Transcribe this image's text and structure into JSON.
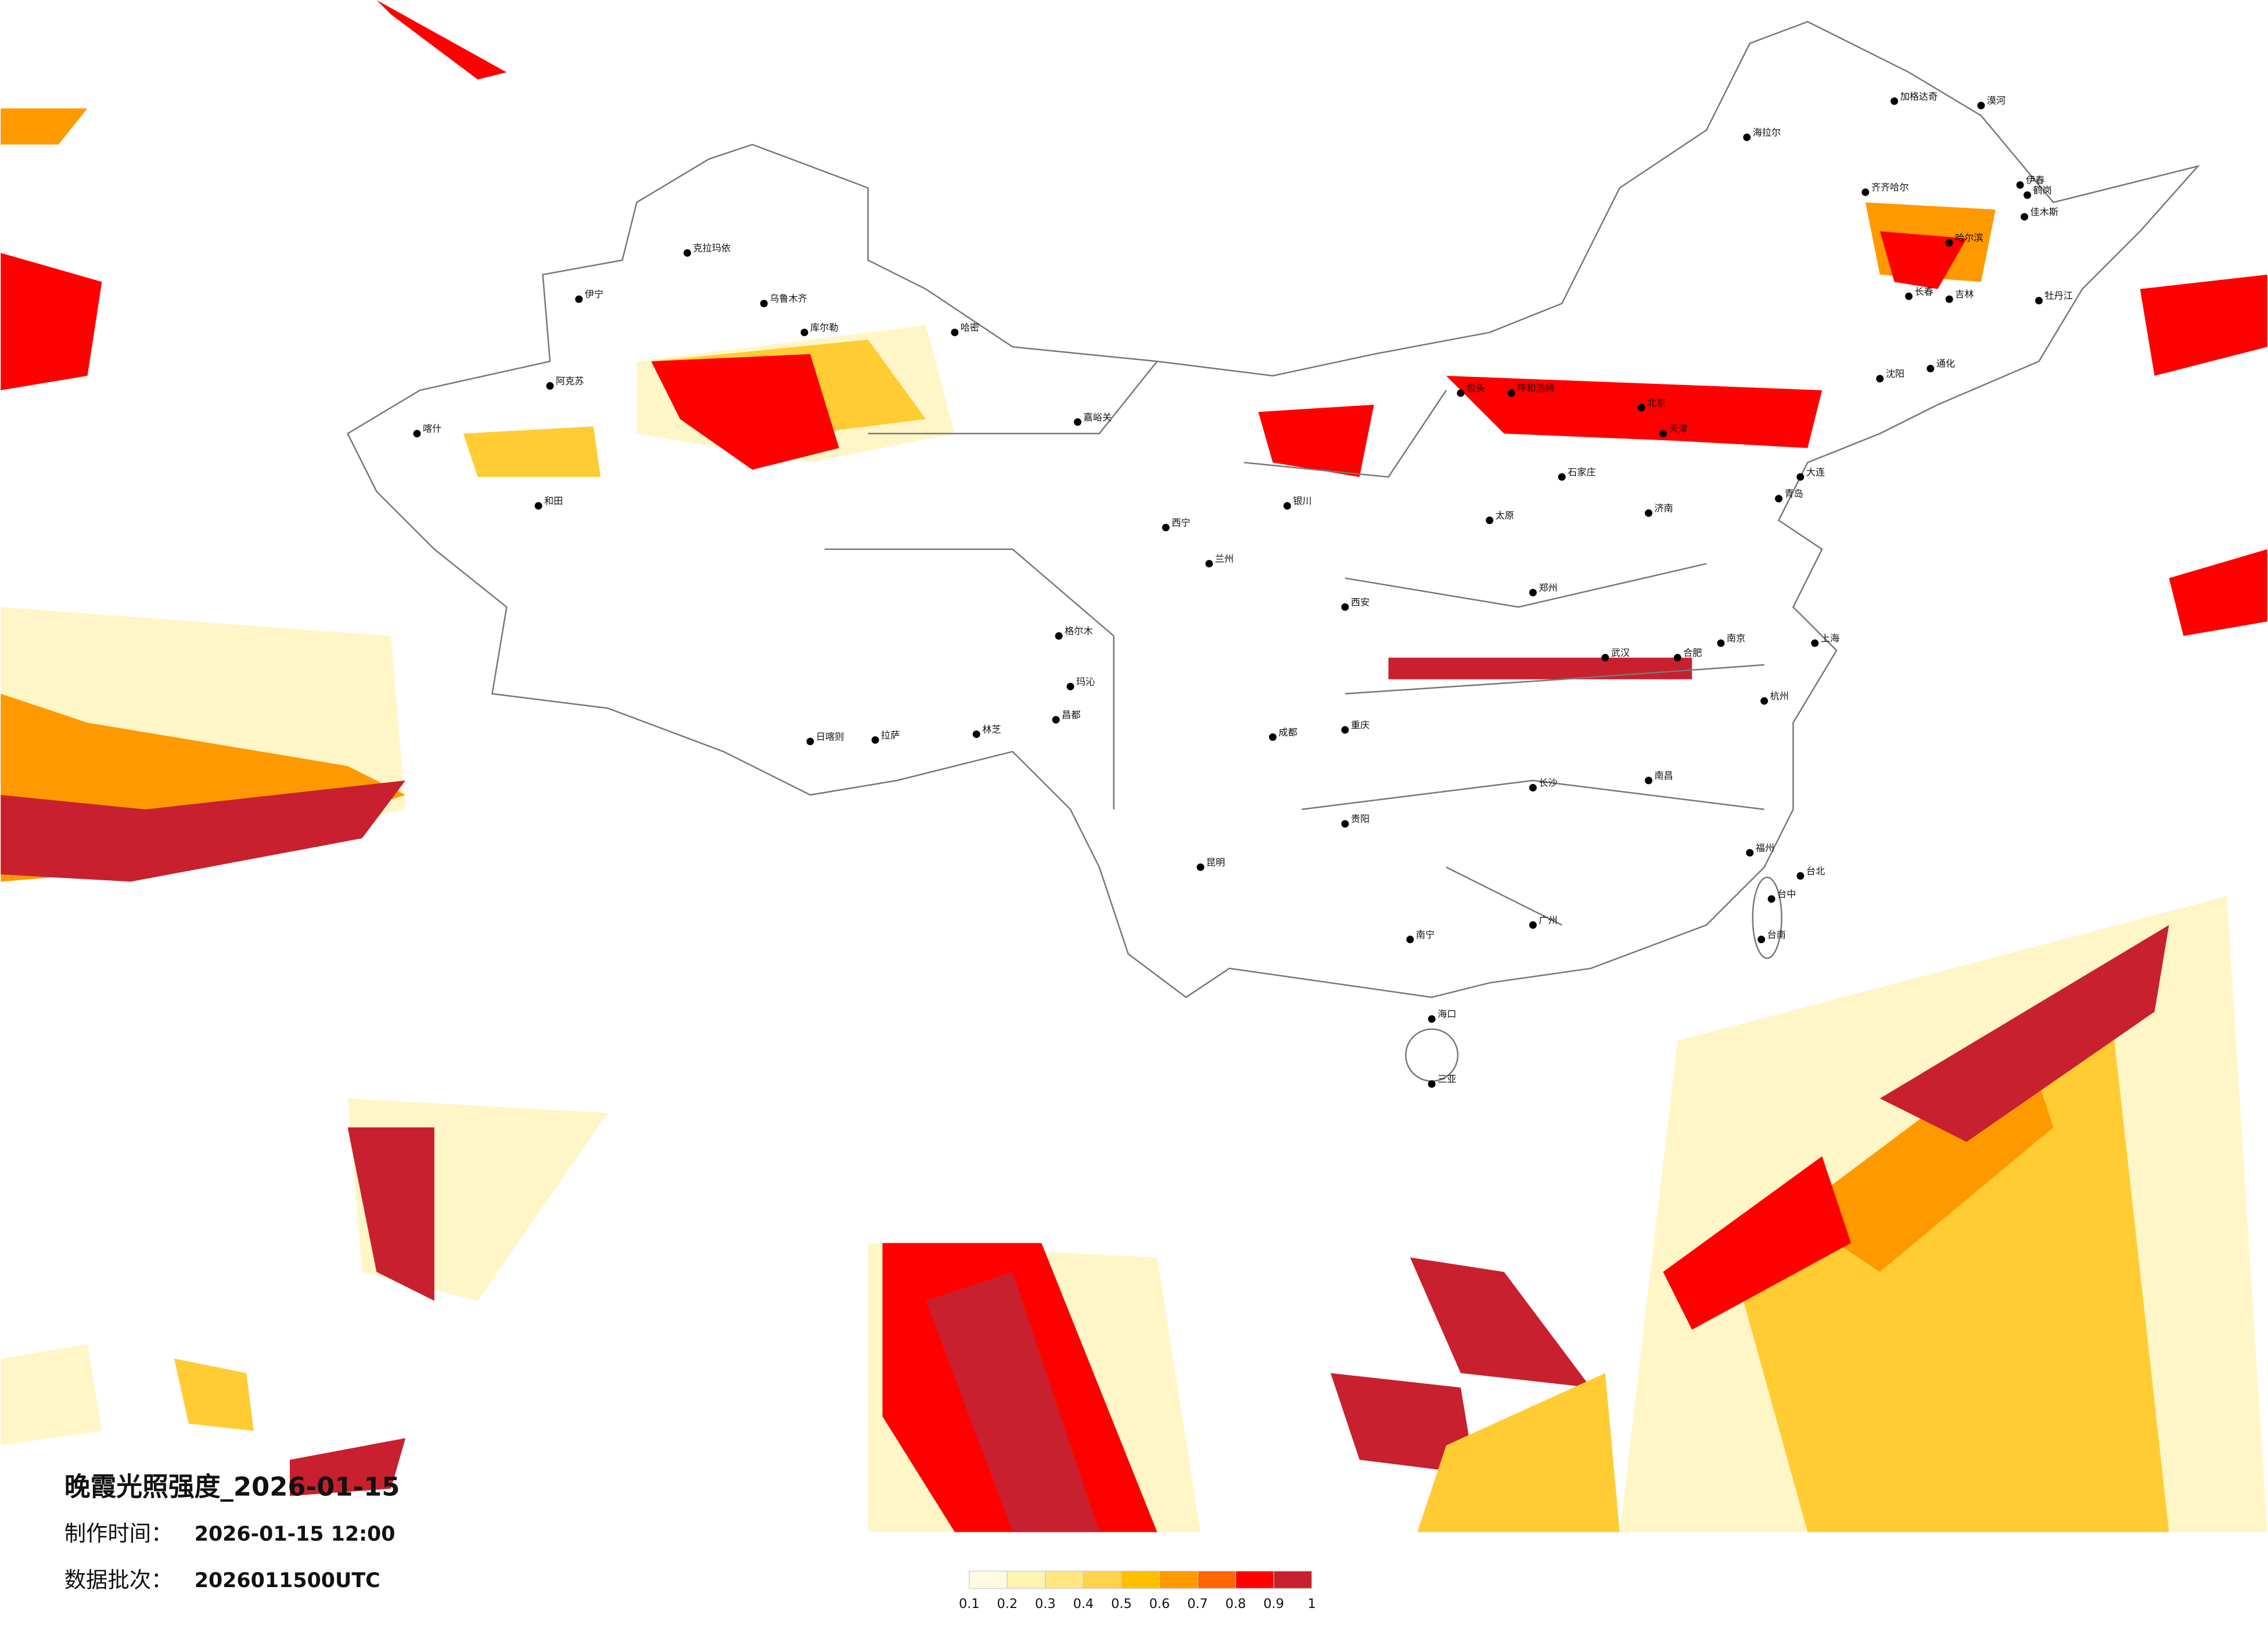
{
  "title": "晚霞光照强度_2026-01-15",
  "info": [
    {
      "label": "制作时间：",
      "value": "2026-01-15 12:00"
    },
    {
      "label": "数据批次：",
      "value": "2026011500UTC"
    }
  ],
  "legend": {
    "ticks": [
      0.1,
      0.2,
      0.3,
      0.4,
      0.5,
      0.6,
      0.7,
      0.8,
      0.9,
      1
    ],
    "colors": [
      "#fffbe2",
      "#fff3b3",
      "#ffe680",
      "#ffd24d",
      "#ffbf00",
      "#ff9900",
      "#ff6600",
      "#ff0000",
      "#c8202e"
    ]
  },
  "cities": [
    "漠河",
    "加格达奇",
    "海拉尔",
    "齐齐哈尔",
    "哈尔滨",
    "伊春",
    "鹤岗",
    "佳木斯",
    "牡丹江",
    "长春",
    "吉林",
    "通化",
    "沈阳",
    "大连",
    "呼和浩特",
    "包头",
    "北京",
    "天津",
    "石家庄",
    "太原",
    "济南",
    "青岛",
    "郑州",
    "西安",
    "兰州",
    "西宁",
    "银川",
    "嘉峪关",
    "克拉玛依",
    "乌鲁木齐",
    "伊宁",
    "阿克苏",
    "喀什",
    "和田",
    "库尔勒",
    "哈密",
    "格尔木",
    "玛沁",
    "日喀则",
    "拉萨",
    "林芝",
    "昌都",
    "成都",
    "重庆",
    "贵阳",
    "昆明",
    "南宁",
    "海口",
    "三亚",
    "广州",
    "长沙",
    "武汉",
    "南昌",
    "合肥",
    "南京",
    "上海",
    "杭州",
    "福州",
    "台北",
    "台中",
    "台南"
  ]
}
